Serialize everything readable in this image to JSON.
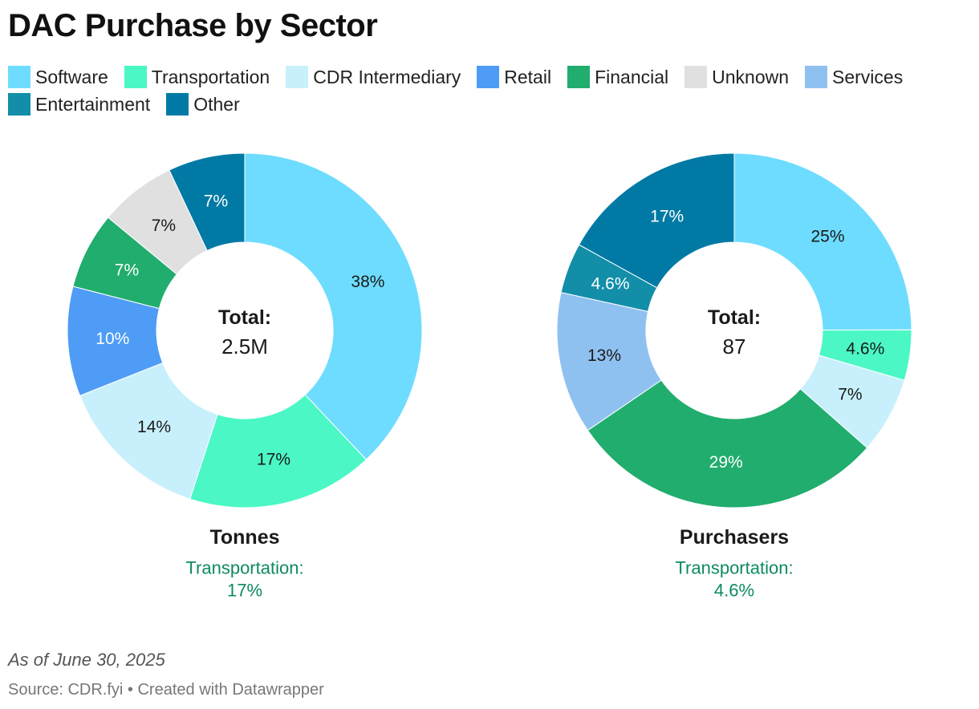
{
  "title": "DAC Purchase by Sector",
  "legend": [
    {
      "label": "Software",
      "color": "#6edcff"
    },
    {
      "label": "Transportation",
      "color": "#4af7c5"
    },
    {
      "label": "CDR Intermediary",
      "color": "#c8f0fc"
    },
    {
      "label": "Retail",
      "color": "#4e9cf5"
    },
    {
      "label": "Financial",
      "color": "#21ad6d"
    },
    {
      "label": "Unknown",
      "color": "#e0e0e0"
    },
    {
      "label": "Services",
      "color": "#8fc1f0"
    },
    {
      "label": "Entertainment",
      "color": "#128ea9"
    },
    {
      "label": "Other",
      "color": "#007aa5"
    }
  ],
  "chart_data": [
    {
      "type": "pie",
      "variant": "donut",
      "title": "Tonnes",
      "center_label": "Total:",
      "center_value": "2.5M",
      "highlight_label": "Transportation:",
      "highlight_value": "17%",
      "slices": [
        {
          "label": "Software",
          "value": 38,
          "display": "38%",
          "color": "#6edcff",
          "text_color": "#1a1a1a"
        },
        {
          "label": "Transportation",
          "value": 17,
          "display": "17%",
          "color": "#4af7c5",
          "text_color": "#1a1a1a"
        },
        {
          "label": "CDR Intermediary",
          "value": 14,
          "display": "14%",
          "color": "#c8f0fc",
          "text_color": "#1a1a1a"
        },
        {
          "label": "Retail",
          "value": 10,
          "display": "10%",
          "color": "#4e9cf5",
          "text_color": "#ffffff"
        },
        {
          "label": "Financial",
          "value": 7,
          "display": "7%",
          "color": "#21ad6d",
          "text_color": "#ffffff"
        },
        {
          "label": "Unknown",
          "value": 7,
          "display": "7%",
          "color": "#e0e0e0",
          "text_color": "#1a1a1a"
        },
        {
          "label": "Other",
          "value": 7,
          "display": "7%",
          "color": "#007aa5",
          "text_color": "#ffffff"
        }
      ]
    },
    {
      "type": "pie",
      "variant": "donut",
      "title": "Purchasers",
      "center_label": "Total:",
      "center_value": "87",
      "highlight_label": "Transportation:",
      "highlight_value": "4.6%",
      "slices": [
        {
          "label": "Software",
          "value": 25,
          "display": "25%",
          "color": "#6edcff",
          "text_color": "#1a1a1a"
        },
        {
          "label": "Transportation",
          "value": 4.6,
          "display": "4.6%",
          "color": "#4af7c5",
          "text_color": "#1a1a1a"
        },
        {
          "label": "CDR Intermediary",
          "value": 7,
          "display": "7%",
          "color": "#c8f0fc",
          "text_color": "#1a1a1a"
        },
        {
          "label": "Financial",
          "value": 29,
          "display": "29%",
          "color": "#21ad6d",
          "text_color": "#ffffff"
        },
        {
          "label": "Services",
          "value": 13,
          "display": "13%",
          "color": "#8fc1f0",
          "text_color": "#1a1a1a"
        },
        {
          "label": "Entertainment",
          "value": 4.6,
          "display": "4.6%",
          "color": "#128ea9",
          "text_color": "#ffffff"
        },
        {
          "label": "Other",
          "value": 17,
          "display": "17%",
          "color": "#007aa5",
          "text_color": "#ffffff"
        }
      ]
    }
  ],
  "highlight_color": "#0e8a5f",
  "footnote": "As of June 30, 2025",
  "source": "Source: CDR.fyi • Created with Datawrapper"
}
